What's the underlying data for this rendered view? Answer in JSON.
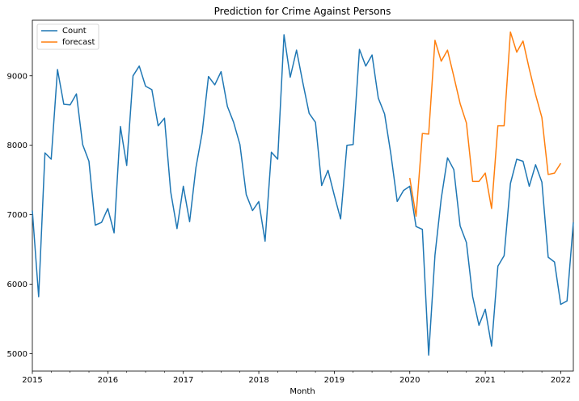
{
  "chart_data": {
    "type": "line",
    "title": "Prediction for Crime Against Persons",
    "xlabel": "Month",
    "ylabel": "",
    "x_start": "2015-01",
    "xlim": [
      "2015-01",
      "2022-03"
    ],
    "ylim": [
      4750,
      9800
    ],
    "xticks": [
      {
        "date": "2015-01",
        "label": "2015"
      },
      {
        "date": "2016-01",
        "label": "2016"
      },
      {
        "date": "2017-01",
        "label": "2017"
      },
      {
        "date": "2018-01",
        "label": "2018"
      },
      {
        "date": "2019-01",
        "label": "2019"
      },
      {
        "date": "2020-01",
        "label": "2020"
      },
      {
        "date": "2021-01",
        "label": "2021"
      },
      {
        "date": "2022-01",
        "label": "2022"
      }
    ],
    "yticks": [
      5000,
      6000,
      7000,
      8000,
      9000
    ],
    "grid": false,
    "legend": {
      "placement": "top-left"
    },
    "series": [
      {
        "name": "Count",
        "color": "#1f77b4",
        "start": "2015-01",
        "values": [
          7060,
          5820,
          7890,
          7800,
          9090,
          8590,
          8580,
          8740,
          8010,
          7770,
          6850,
          6890,
          7090,
          6740,
          8270,
          7710,
          9000,
          9140,
          8850,
          8800,
          8280,
          8390,
          7330,
          6800,
          7410,
          6900,
          7680,
          8180,
          8990,
          8870,
          9060,
          8560,
          8330,
          8010,
          7290,
          7060,
          7190,
          6620,
          7900,
          7800,
          9590,
          8980,
          9370,
          8900,
          8460,
          8330,
          7420,
          7640,
          7280,
          6940,
          8000,
          8010,
          9380,
          9140,
          9300,
          8680,
          8450,
          7870,
          7190,
          7350,
          7410,
          6830,
          6790,
          4980,
          6420,
          7230,
          7820,
          7650,
          6840,
          6600,
          5820,
          5410,
          5640,
          5110,
          6260,
          6410,
          7450,
          7800,
          7770,
          7410,
          7720,
          7470,
          6390,
          6320,
          5710,
          5760,
          6890
        ]
      },
      {
        "name": "forecast",
        "color": "#ff7f0e",
        "start": "2020-01",
        "values": [
          7530,
          6980,
          8170,
          8160,
          9510,
          9210,
          9370,
          8990,
          8600,
          8320,
          7480,
          7480,
          7600,
          7090,
          8280,
          8280,
          9630,
          9340,
          9500,
          9100,
          8730,
          8400,
          7580,
          7600,
          7740
        ]
      }
    ]
  }
}
